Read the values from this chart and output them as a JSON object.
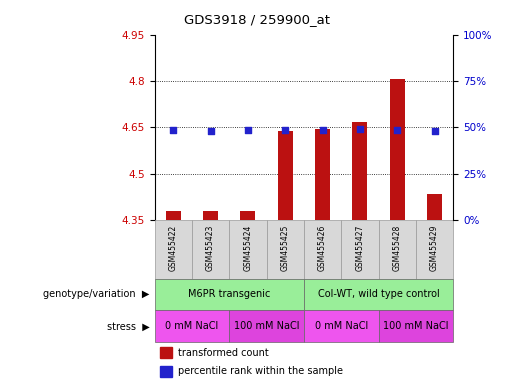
{
  "title": "GDS3918 / 259900_at",
  "samples": [
    "GSM455422",
    "GSM455423",
    "GSM455424",
    "GSM455425",
    "GSM455426",
    "GSM455427",
    "GSM455428",
    "GSM455429"
  ],
  "bar_bottom": 4.35,
  "bar_tops": [
    4.382,
    4.382,
    4.382,
    4.638,
    4.645,
    4.668,
    4.808,
    4.435
  ],
  "blue_dots": [
    4.643,
    4.638,
    4.643,
    4.643,
    4.643,
    4.645,
    4.643,
    4.638
  ],
  "ylim": [
    4.35,
    4.95
  ],
  "y_ticks_left": [
    4.35,
    4.5,
    4.65,
    4.8,
    4.95
  ],
  "y_ticks_right": [
    0,
    25,
    50,
    75,
    100
  ],
  "y_ticks_right_pos": [
    4.35,
    4.5,
    4.65,
    4.8,
    4.95
  ],
  "bar_color": "#bb1111",
  "dot_color": "#2222cc",
  "grid_color": "#000000",
  "bg_color": "#ffffff",
  "sample_box_color": "#d8d8d8",
  "genotype_groups": [
    {
      "label": "M6PR transgenic",
      "start": 0,
      "end": 4,
      "color": "#99ee99"
    },
    {
      "label": "Col-WT, wild type control",
      "start": 4,
      "end": 8,
      "color": "#99ee99"
    }
  ],
  "stress_groups": [
    {
      "label": "0 mM NaCl",
      "start": 0,
      "end": 2,
      "color": "#ee55ee"
    },
    {
      "label": "100 mM NaCl",
      "start": 2,
      "end": 4,
      "color": "#dd44dd"
    },
    {
      "label": "0 mM NaCl",
      "start": 4,
      "end": 6,
      "color": "#ee55ee"
    },
    {
      "label": "100 mM NaCl",
      "start": 6,
      "end": 8,
      "color": "#dd44dd"
    }
  ],
  "legend_items": [
    {
      "label": "transformed count",
      "color": "#bb1111"
    },
    {
      "label": "percentile rank within the sample",
      "color": "#2222cc"
    }
  ],
  "left_labels": [
    {
      "text": "genotype/variation",
      "row": "geno"
    },
    {
      "text": "stress",
      "row": "stress"
    }
  ]
}
